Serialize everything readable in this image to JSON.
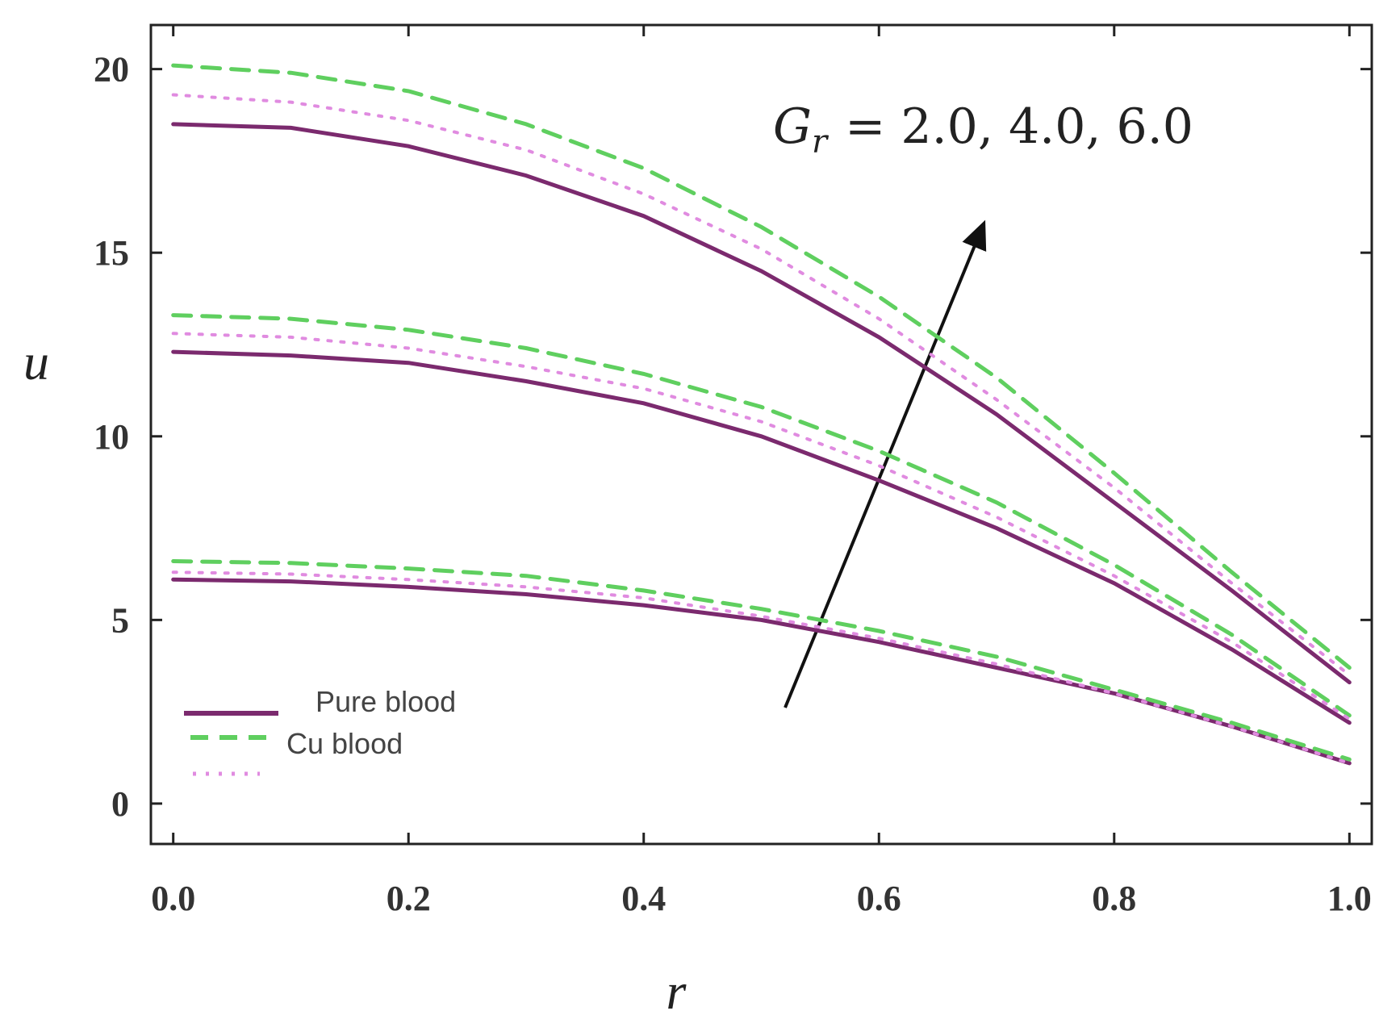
{
  "chart_data": {
    "type": "line",
    "xlabel": "r",
    "ylabel": "u",
    "annotation": {
      "symbol": "G",
      "subscript": "r",
      "text": "= 2.0, 4.0, 6.0"
    },
    "x": [
      0,
      0.1,
      0.2,
      0.3,
      0.4,
      0.5,
      0.6,
      0.7,
      0.8,
      0.9,
      1.0
    ],
    "xlim": [
      -0.019,
      1.019
    ],
    "xticks": [
      {
        "value": 0,
        "label": "0.0"
      },
      0.2,
      0.4,
      0.6,
      0.8,
      {
        "value": 1,
        "label": "1.0"
      }
    ],
    "ylim": [
      -1.1,
      21.2
    ],
    "yticks": [
      0,
      5,
      10,
      15,
      20
    ],
    "legend": [
      {
        "label": "Pure blood",
        "color": "#7b2a6e",
        "dash": "solid"
      },
      {
        "label": "Cu blood",
        "color": "#5fcf5f",
        "dash": "dashed"
      },
      {
        "color": "#e08be0",
        "dash": "dotted"
      }
    ],
    "series": [
      {
        "style": 0,
        "values": [
          18.5,
          18.4,
          17.9,
          17.1,
          16.0,
          14.5,
          12.7,
          10.6,
          8.2,
          5.8,
          3.3
        ]
      },
      {
        "style": 1,
        "values": [
          20.1,
          19.9,
          19.4,
          18.5,
          17.3,
          15.7,
          13.8,
          11.6,
          9.0,
          6.3,
          3.7
        ]
      },
      {
        "style": 2,
        "values": [
          19.3,
          19.1,
          18.6,
          17.8,
          16.6,
          15.1,
          13.2,
          11.0,
          8.6,
          6.0,
          3.5
        ]
      },
      {
        "style": 0,
        "values": [
          12.3,
          12.2,
          12.0,
          11.5,
          10.9,
          10.0,
          8.8,
          7.5,
          6.0,
          4.2,
          2.2
        ]
      },
      {
        "style": 1,
        "values": [
          13.3,
          13.2,
          12.9,
          12.4,
          11.7,
          10.8,
          9.6,
          8.2,
          6.5,
          4.6,
          2.4
        ]
      },
      {
        "style": 2,
        "values": [
          12.8,
          12.7,
          12.4,
          11.9,
          11.3,
          10.4,
          9.2,
          7.8,
          6.2,
          4.4,
          2.3
        ]
      },
      {
        "style": 0,
        "values": [
          6.1,
          6.05,
          5.9,
          5.7,
          5.4,
          5.0,
          4.4,
          3.7,
          3.0,
          2.1,
          1.1
        ]
      },
      {
        "style": 1,
        "values": [
          6.6,
          6.55,
          6.4,
          6.2,
          5.8,
          5.3,
          4.7,
          4.0,
          3.1,
          2.2,
          1.2
        ]
      },
      {
        "style": 2,
        "values": [
          6.3,
          6.25,
          6.1,
          5.9,
          5.6,
          5.1,
          4.5,
          3.8,
          3.0,
          2.1,
          1.1
        ]
      }
    ]
  }
}
